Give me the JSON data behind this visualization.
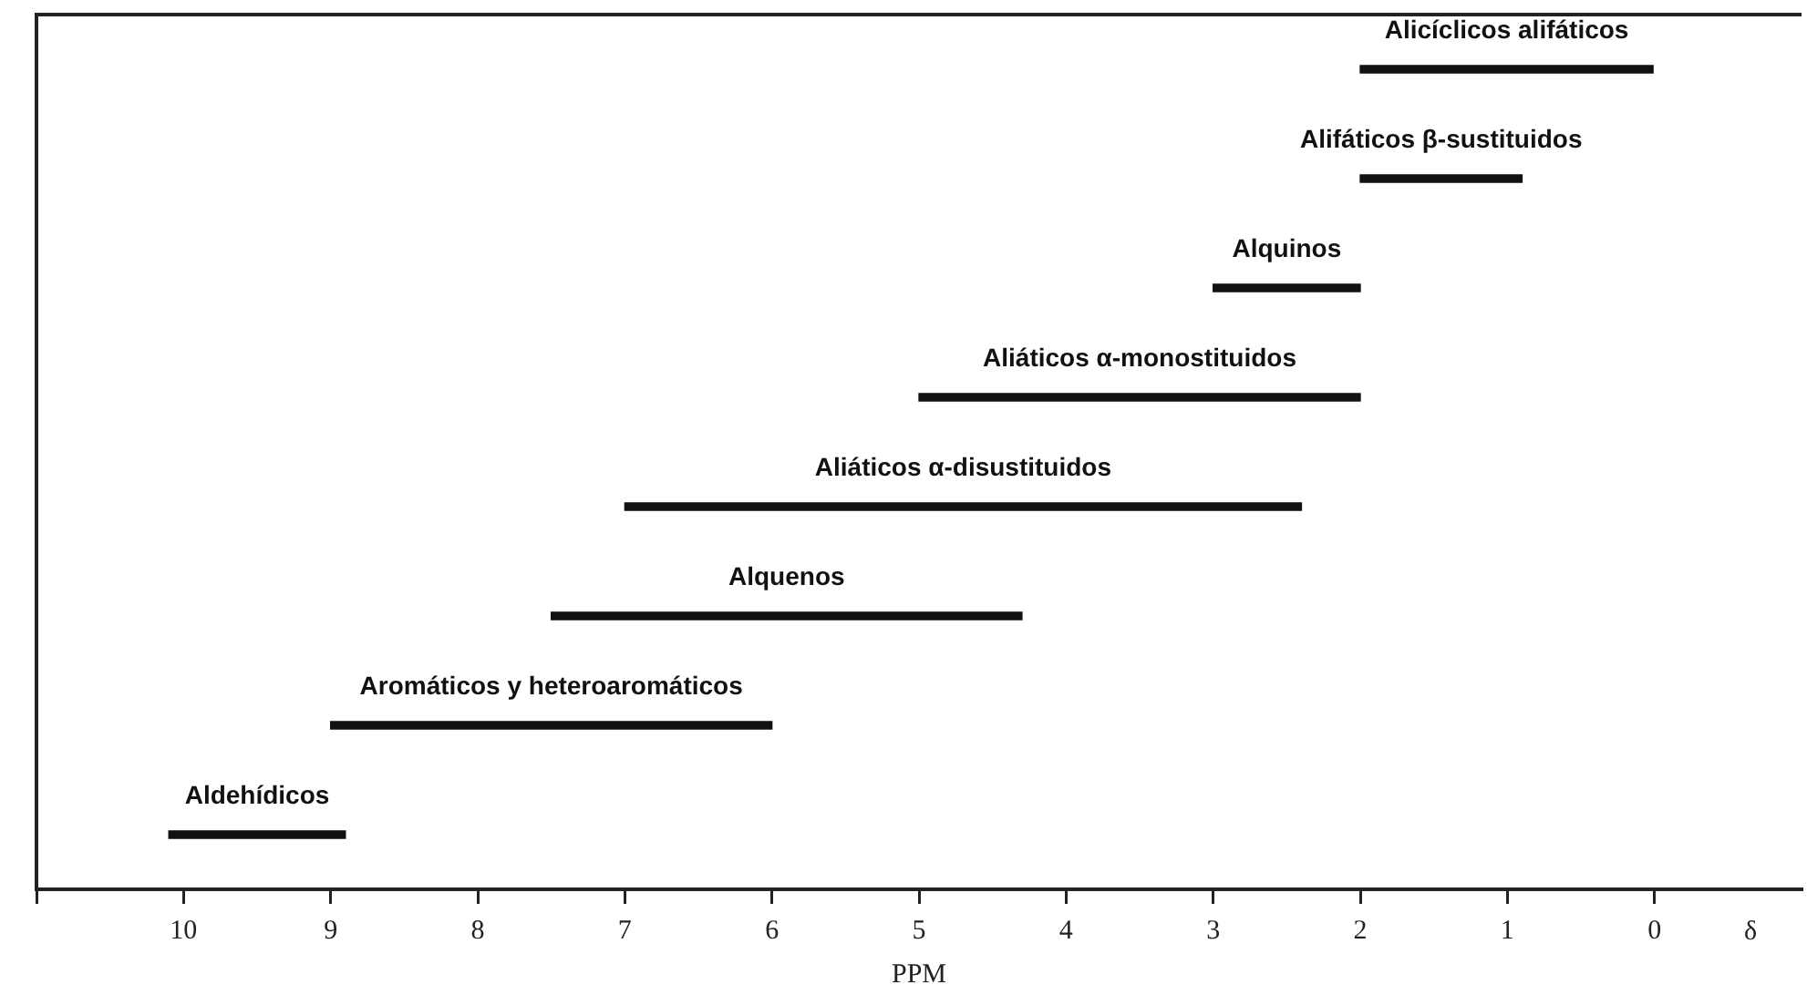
{
  "chart_data": {
    "type": "bar",
    "orientation": "horizontal",
    "xlabel": "PPM",
    "annotations": [
      "δ"
    ],
    "categories": [
      "Alicíclicos alifáticos",
      "Alifáticos β-sustituidos",
      "Alquinos",
      "Aliáticos α-monostituidos",
      "Aliáticos α-disustituidos",
      "Alquenos",
      "Aromáticos y heteroaromáticos",
      "Aldehídicos"
    ],
    "base": [
      2.0,
      2.0,
      3.0,
      5.0,
      7.0,
      7.5,
      9.0,
      10.1
    ],
    "values": [
      -2.0,
      -1.1,
      -1.0,
      -3.0,
      -4.6,
      -3.2,
      -3.0,
      -1.2
    ],
    "color": "#111111",
    "xlim": [
      11,
      -1
    ],
    "xticks": [
      {
        "value": 11,
        "label": null
      },
      10,
      9,
      8,
      7,
      6,
      5,
      4,
      3,
      2,
      1,
      0
    ],
    "tick_labels": "x"
  }
}
